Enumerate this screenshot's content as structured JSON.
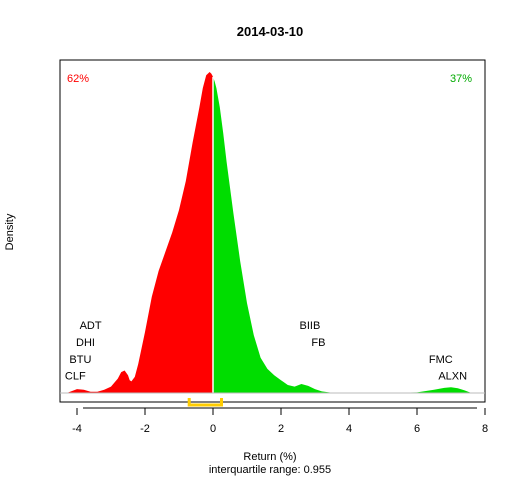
{
  "chart_data": {
    "type": "area",
    "title": "2014-03-10",
    "xlabel": "Return (%)",
    "ylabel": "Density",
    "subtitle": "interquartile range: 0.955",
    "xlim": [
      -4.5,
      8
    ],
    "ylim": [
      0,
      1
    ],
    "x_ticks": [
      -4,
      -2,
      0,
      2,
      4,
      6,
      8
    ],
    "x_tick_labels": [
      "-4",
      "-2",
      "0",
      "2",
      "4",
      "6",
      "8"
    ],
    "split_at": 0,
    "negative_share_label": "62%",
    "positive_share_label": "37%",
    "negative_color": "#ff0000",
    "positive_color": "#00dd00",
    "iqr_color": "#ffcc00",
    "iqr": [
      -0.7,
      0.25
    ],
    "density": {
      "x": [
        -4.3,
        -4.0,
        -3.8,
        -3.6,
        -3.4,
        -3.2,
        -3.0,
        -2.8,
        -2.7,
        -2.6,
        -2.5,
        -2.45,
        -2.4,
        -2.3,
        -2.2,
        -2.0,
        -1.8,
        -1.6,
        -1.4,
        -1.2,
        -1.0,
        -0.8,
        -0.6,
        -0.4,
        -0.3,
        -0.2,
        -0.1,
        -0.05,
        0.0,
        0.05,
        0.1,
        0.2,
        0.3,
        0.4,
        0.6,
        0.8,
        1.0,
        1.2,
        1.4,
        1.6,
        1.8,
        2.0,
        2.2,
        2.4,
        2.6,
        2.8,
        3.0,
        3.2,
        3.5,
        4.0,
        5.0,
        6.0,
        6.5,
        6.8,
        7.0,
        7.2,
        7.4,
        7.6
      ],
      "y": [
        0.0,
        0.012,
        0.01,
        0.004,
        0.004,
        0.01,
        0.02,
        0.045,
        0.065,
        0.07,
        0.055,
        0.04,
        0.036,
        0.05,
        0.09,
        0.19,
        0.3,
        0.38,
        0.44,
        0.5,
        0.57,
        0.66,
        0.78,
        0.89,
        0.95,
        0.99,
        1.0,
        0.995,
        0.985,
        0.97,
        0.95,
        0.89,
        0.81,
        0.72,
        0.56,
        0.41,
        0.28,
        0.18,
        0.11,
        0.075,
        0.055,
        0.04,
        0.025,
        0.02,
        0.028,
        0.022,
        0.012,
        0.005,
        0.001,
        0.0,
        0.0,
        0.002,
        0.01,
        0.016,
        0.018,
        0.015,
        0.008,
        0.0
      ]
    },
    "annotations": [
      {
        "text": "ADT",
        "x": -3.6,
        "y": 0.2
      },
      {
        "text": "DHI",
        "x": -3.75,
        "y": 0.146
      },
      {
        "text": "BTU",
        "x": -3.9,
        "y": 0.094
      },
      {
        "text": "CLF",
        "x": -4.05,
        "y": 0.042
      },
      {
        "text": "BIIB",
        "x": 2.85,
        "y": 0.2
      },
      {
        "text": "FB",
        "x": 3.1,
        "y": 0.146
      },
      {
        "text": "FMC",
        "x": 6.7,
        "y": 0.094
      },
      {
        "text": "ALXN",
        "x": 7.05,
        "y": 0.042
      }
    ]
  }
}
